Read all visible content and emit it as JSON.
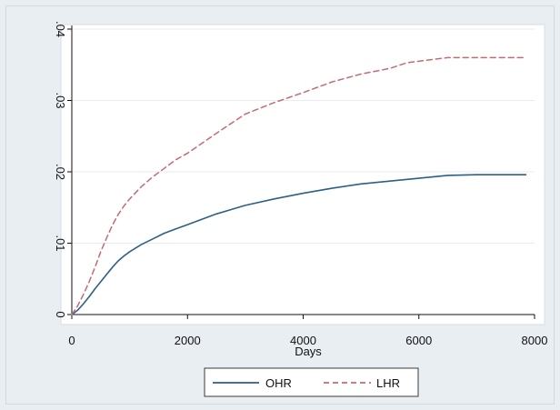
{
  "chart_data": {
    "type": "line",
    "title": "",
    "xlabel": "Days",
    "ylabel": "",
    "xlim": [
      0,
      8000
    ],
    "ylim": [
      0,
      0.04
    ],
    "x_ticks": [
      0,
      2000,
      4000,
      6000,
      8000
    ],
    "x_tick_labels": [
      "0",
      "2000",
      "4000",
      "6000",
      "8000"
    ],
    "y_ticks": [
      0,
      0.01,
      0.02,
      0.03,
      0.04
    ],
    "y_tick_labels": [
      "0",
      ".01",
      ".02",
      ".03",
      ".04"
    ],
    "grid": true,
    "legend_position": "bottom",
    "series": [
      {
        "name": "OHR",
        "color": "#2e5f86",
        "line_style": "solid",
        "x": [
          0,
          100,
          200,
          300,
          400,
          500,
          600,
          700,
          800,
          900,
          1000,
          1200,
          1400,
          1600,
          1800,
          2000,
          2500,
          3000,
          3500,
          4000,
          4500,
          5000,
          5500,
          6000,
          6500,
          7000,
          7500,
          7850
        ],
        "y": [
          0,
          0.0006,
          0.0015,
          0.0025,
          0.0036,
          0.0046,
          0.0056,
          0.0066,
          0.0075,
          0.0082,
          0.0088,
          0.0098,
          0.0106,
          0.0114,
          0.012,
          0.0126,
          0.0141,
          0.0153,
          0.0162,
          0.017,
          0.0177,
          0.0183,
          0.0187,
          0.0191,
          0.0195,
          0.0196,
          0.0196,
          0.0196
        ]
      },
      {
        "name": "LHR",
        "color": "#c36b73",
        "line_style": "dashed",
        "x": [
          0,
          100,
          200,
          300,
          400,
          500,
          600,
          700,
          800,
          900,
          1000,
          1200,
          1400,
          1600,
          1800,
          2000,
          2500,
          3000,
          3500,
          4000,
          4500,
          5000,
          5500,
          5800,
          6000,
          6500,
          7000,
          7500,
          7850
        ],
        "y": [
          0,
          0.0012,
          0.0028,
          0.0046,
          0.0066,
          0.0088,
          0.0107,
          0.0125,
          0.014,
          0.0152,
          0.0162,
          0.0179,
          0.0193,
          0.0205,
          0.0217,
          0.0226,
          0.0254,
          0.0281,
          0.0297,
          0.0311,
          0.0326,
          0.0337,
          0.0345,
          0.0353,
          0.0355,
          0.036,
          0.036,
          0.036,
          0.036
        ]
      }
    ]
  },
  "colors": {
    "outer_background": "#e9eef3",
    "plot_background": "#ffffff",
    "grid": "#e7ecf0",
    "axis": "#111111"
  }
}
